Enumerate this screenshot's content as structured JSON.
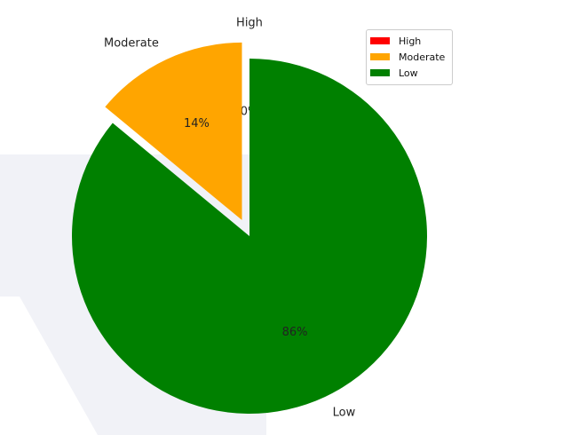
{
  "chart_data": {
    "type": "pie",
    "categories": [
      "High",
      "Moderate",
      "Low"
    ],
    "values": [
      0,
      14,
      86
    ],
    "percent_labels": [
      "0%",
      "14%",
      "86%"
    ],
    "colors": [
      "#ff0000",
      "#ffa500",
      "#008000"
    ],
    "exploded": [
      true,
      true,
      false
    ],
    "start_angle_deg": 90,
    "legend": {
      "placement": "top-right",
      "entries": [
        {
          "label": "High",
          "color": "#ff0000"
        },
        {
          "label": "Moderate",
          "color": "#ffa500"
        },
        {
          "label": "Low",
          "color": "#008000"
        }
      ]
    },
    "title": ""
  }
}
